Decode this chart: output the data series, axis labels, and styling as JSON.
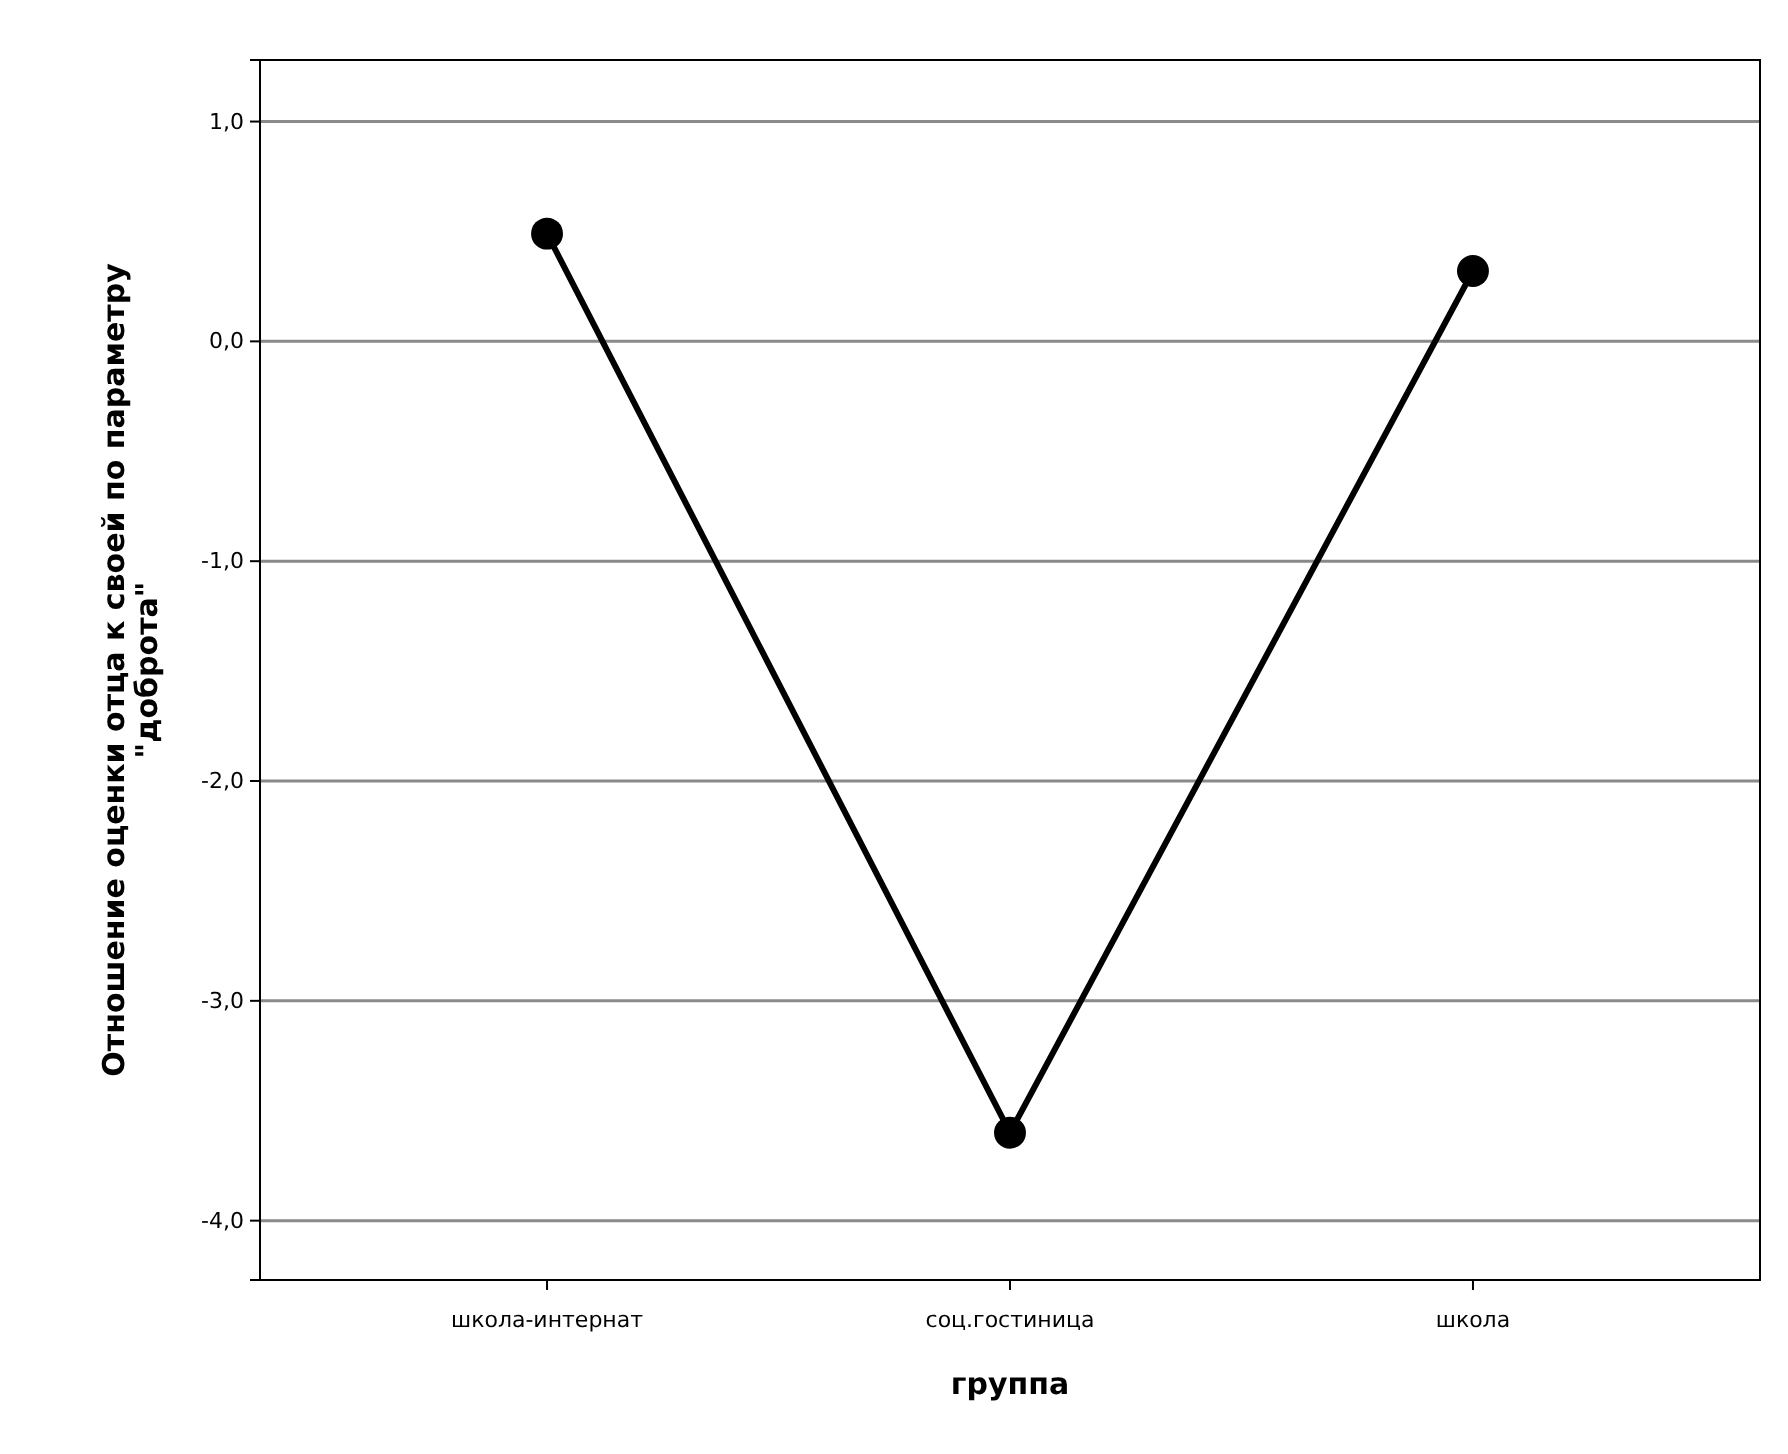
{
  "chart_data": {
    "type": "line",
    "xlabel": "группа",
    "ylabel": "Отношение оценки отца к своей по параметру\n\"доброта\"",
    "categories": [
      "школа-интернат",
      "соц.гостиница",
      "школа"
    ],
    "series": [
      {
        "color": "#000000",
        "values": [
          0.49,
          -3.6,
          0.32
        ]
      }
    ],
    "ylim": [
      -4.27,
      1.28
    ],
    "yticks": [
      {
        "value": -4,
        "label": "-4,0"
      },
      {
        "value": -3,
        "label": "-3,0"
      },
      {
        "value": -2,
        "label": "-2,0"
      },
      {
        "value": -1,
        "label": "-1,0"
      },
      {
        "value": 0,
        "label": "0,0"
      },
      {
        "value": 1,
        "label": "1,0"
      }
    ],
    "grid": "y",
    "marker": "circle",
    "line_style": "solid"
  }
}
